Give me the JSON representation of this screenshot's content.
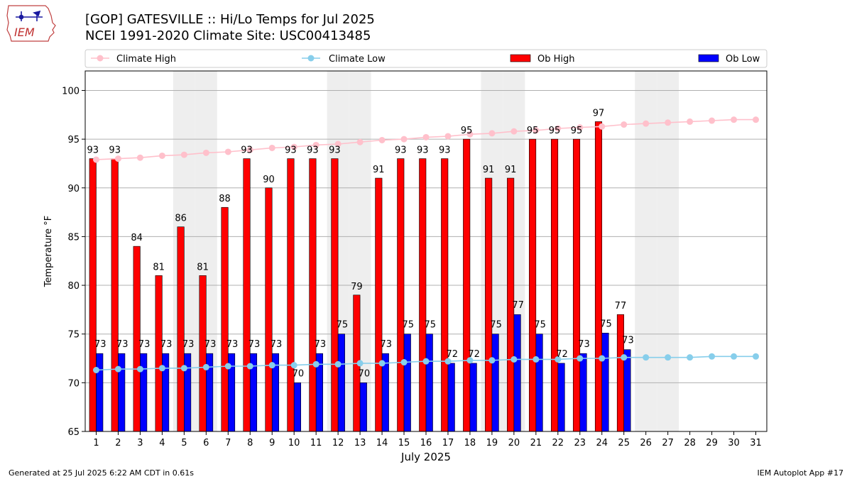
{
  "header": {
    "title_line1": "[GOP] GATESVILLE :: Hi/Lo Temps for Jul 2025",
    "title_line2": "NCEI 1991-2020 Climate Site: USC00413485",
    "logo_text": "IEM"
  },
  "footer": {
    "generated": "Generated at 25 Jul 2025 6:22 AM CDT in 0.61s",
    "app": "IEM Autoplot App #17"
  },
  "colors": {
    "ob_high": "#ff0000",
    "ob_low": "#0000ff",
    "climate_high": "#ffc0cb",
    "climate_low": "#87ceeb",
    "weekend_band": "#eeeeee",
    "grid": "#b0b0b0"
  },
  "chart_data": {
    "type": "bar",
    "xlabel": "July 2025",
    "ylabel": "Temperature °F",
    "ylim": [
      65,
      102
    ],
    "yticks": [
      65,
      70,
      75,
      80,
      85,
      90,
      95,
      100
    ],
    "grid": "horizontal",
    "legend_placement": "top",
    "x": [
      1,
      2,
      3,
      4,
      5,
      6,
      7,
      8,
      9,
      10,
      11,
      12,
      13,
      14,
      15,
      16,
      17,
      18,
      19,
      20,
      21,
      22,
      23,
      24,
      25,
      26,
      27,
      28,
      29,
      30,
      31
    ],
    "weekend_days": [
      5,
      6,
      12,
      13,
      19,
      20,
      26,
      27
    ],
    "series": [
      {
        "name": "Climate High",
        "kind": "line",
        "values": [
          92.9,
          93.0,
          93.1,
          93.3,
          93.4,
          93.6,
          93.7,
          93.9,
          94.1,
          94.2,
          94.4,
          94.5,
          94.7,
          94.9,
          95.0,
          95.2,
          95.3,
          95.5,
          95.6,
          95.8,
          95.9,
          96.1,
          96.2,
          96.3,
          96.5,
          96.6,
          96.7,
          96.8,
          96.9,
          97.0,
          97.0
        ]
      },
      {
        "name": "Climate Low",
        "kind": "line",
        "values": [
          71.3,
          71.4,
          71.4,
          71.5,
          71.5,
          71.6,
          71.7,
          71.7,
          71.8,
          71.8,
          71.9,
          71.9,
          72.0,
          72.0,
          72.1,
          72.2,
          72.2,
          72.3,
          72.3,
          72.4,
          72.4,
          72.4,
          72.5,
          72.5,
          72.6,
          72.6,
          72.6,
          72.6,
          72.7,
          72.7,
          72.7
        ]
      },
      {
        "name": "Ob High",
        "kind": "bar",
        "values": [
          93,
          93,
          84,
          81,
          86,
          81,
          88,
          93,
          90,
          93,
          93,
          93,
          79,
          91,
          93,
          93,
          93,
          95,
          91,
          91,
          95,
          95,
          95,
          97,
          77,
          null,
          null,
          null,
          null,
          null,
          null
        ],
        "plot_values": [
          93,
          93,
          84,
          81,
          86,
          81,
          88,
          93,
          90,
          93,
          93,
          93,
          79,
          91,
          93,
          93,
          93,
          95,
          91,
          91,
          95,
          95,
          95,
          96.8,
          77,
          null,
          null,
          null,
          null,
          null,
          null
        ]
      },
      {
        "name": "Ob Low",
        "kind": "bar",
        "values": [
          73,
          73,
          73,
          73,
          73,
          73,
          73,
          73,
          73,
          70,
          73,
          75,
          70,
          73,
          75,
          75,
          72,
          72,
          75,
          77,
          75,
          72,
          73,
          75,
          73,
          null,
          null,
          null,
          null,
          null,
          null
        ],
        "plot_values": [
          73,
          73,
          73,
          73,
          73,
          73,
          73,
          73,
          73,
          70,
          73,
          75,
          70,
          73,
          75,
          75,
          72,
          72,
          75,
          77,
          75,
          72,
          73,
          75.1,
          73.4,
          null,
          null,
          null,
          null,
          null,
          null
        ]
      }
    ]
  }
}
